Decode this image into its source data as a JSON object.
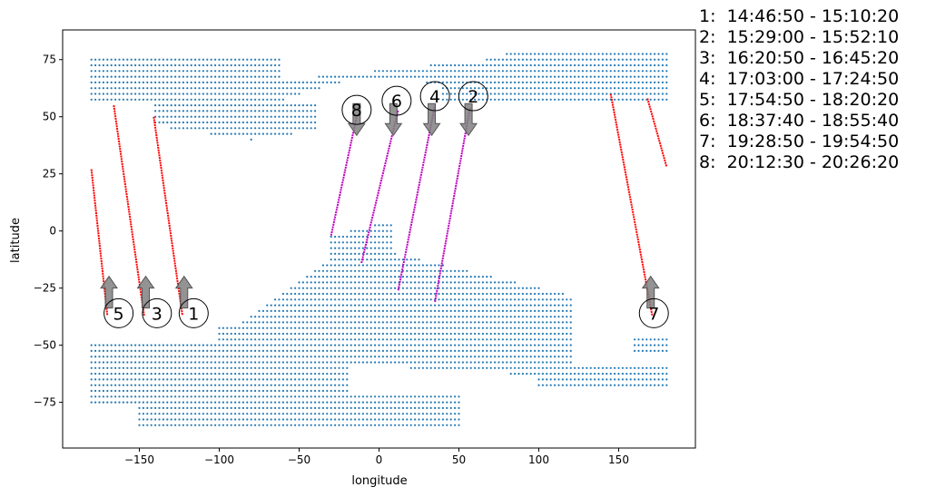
{
  "chart_data": {
    "type": "scatter",
    "title": "",
    "xlabel": "longitude",
    "ylabel": "latitude",
    "xlim": [
      -198,
      198
    ],
    "ylim": [
      -95,
      88
    ],
    "xticks": [
      -150,
      -100,
      -50,
      0,
      50,
      100,
      150
    ],
    "yticks": [
      -75,
      -50,
      -25,
      0,
      25,
      50,
      75
    ],
    "grid": false,
    "colors": {
      "land": "#1f77b4",
      "descending": "#ff0000",
      "ascending": "#bf00bf",
      "arrow": "#808080"
    },
    "land_points_description": "grid of land sample points (Americas, Africa/Europe, Asia, Australia, Antarctica-like bands)",
    "tracks": [
      {
        "id": "1",
        "color": "red",
        "start": [
          -141,
          50
        ],
        "end": [
          -123,
          -37
        ],
        "label_pos": [
          -116,
          -36
        ],
        "arrow": "up",
        "arrow_at": [
          -122,
          -25
        ]
      },
      {
        "id": "2",
        "color": "magenta",
        "start": [
          35,
          -31
        ],
        "end": [
          57,
          54
        ],
        "label_pos": [
          59,
          59
        ],
        "arrow": "down",
        "arrow_at": [
          56,
          47
        ]
      },
      {
        "id": "3",
        "color": "red",
        "start": [
          -166,
          55
        ],
        "end": [
          -147,
          -37
        ],
        "label_pos": [
          -139,
          -36
        ],
        "arrow": "up",
        "arrow_at": [
          -146,
          -25
        ]
      },
      {
        "id": "4",
        "color": "magenta",
        "start": [
          12,
          -26
        ],
        "end": [
          35,
          55
        ],
        "label_pos": [
          35,
          59
        ],
        "arrow": "down",
        "arrow_at": [
          33,
          47
        ]
      },
      {
        "id": "5",
        "color": "red",
        "start": [
          -180,
          27
        ],
        "end": [
          -170,
          -37
        ],
        "label_pos": [
          -163,
          -36
        ],
        "arrow": "up",
        "arrow_at": [
          -169,
          -25
        ]
      },
      {
        "id": "6",
        "color": "magenta",
        "start": [
          -11,
          -14
        ],
        "end": [
          12,
          53
        ],
        "label_pos": [
          11,
          57
        ],
        "arrow": "down",
        "arrow_at": [
          9,
          47
        ]
      },
      {
        "id": "7",
        "color": "red",
        "start": [
          145,
          60
        ],
        "end": [
          171,
          -37
        ],
        "label_pos": [
          172,
          -36
        ],
        "arrow": "up",
        "arrow_at": [
          170,
          -25
        ]
      },
      {
        "id": "7b",
        "color": "red",
        "start": [
          168,
          58
        ],
        "end": [
          180,
          28
        ]
      },
      {
        "id": "8",
        "color": "magenta",
        "start": [
          -30,
          -2
        ],
        "end": [
          -14,
          50
        ],
        "label_pos": [
          -14,
          53
        ],
        "arrow": "down",
        "arrow_at": [
          -14,
          47
        ]
      }
    ]
  },
  "legend": [
    "1:  14:46:50 - 15:10:20",
    "2:  15:29:00 - 15:52:10",
    "3:  16:20:50 - 16:45:20",
    "4:  17:03:00 - 17:24:50",
    "5:  17:54:50 - 18:20:20",
    "6:  18:37:40 - 18:55:40",
    "7:  19:28:50 - 19:54:50",
    "8:  20:12:30 - 20:26:20"
  ]
}
